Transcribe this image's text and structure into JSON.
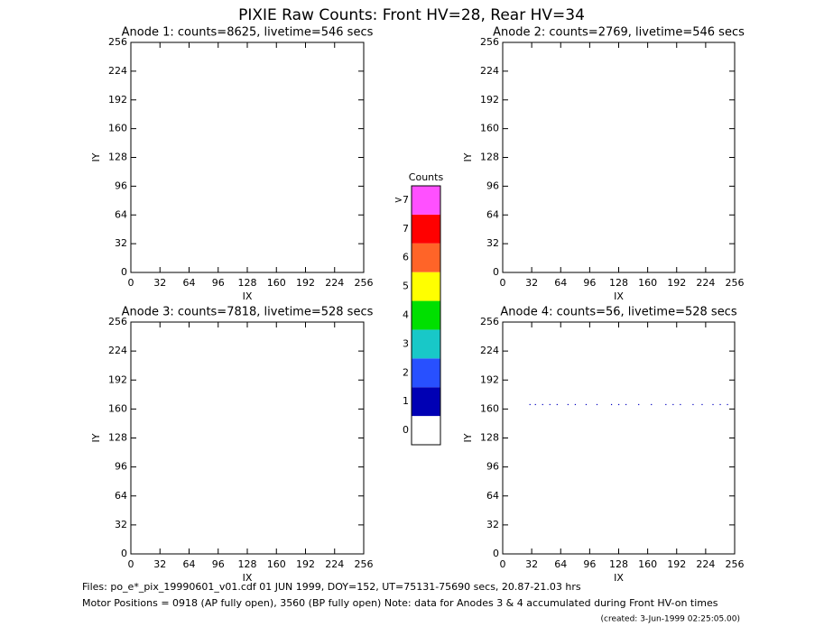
{
  "title": "PIXIE Raw Counts:  Front HV=28, Rear HV=34",
  "chart_data": [
    {
      "type": "scatter",
      "title": "Anode 1: counts=8625, livetime=546 secs",
      "xlabel": "IX",
      "ylabel": "IY",
      "xlim": [
        0,
        256
      ],
      "ylim": [
        0,
        256
      ],
      "xticks": [
        0,
        32,
        64,
        96,
        128,
        160,
        192,
        224,
        256
      ],
      "yticks": [
        0,
        32,
        64,
        96,
        128,
        160,
        192,
        224,
        256
      ],
      "color": "#0000c0"
    },
    {
      "type": "scatter",
      "title": "Anode 2: counts=2769, livetime=546 secs",
      "xlabel": "IX",
      "ylabel": "IY",
      "xlim": [
        0,
        256
      ],
      "ylim": [
        0,
        256
      ],
      "xticks": [
        0,
        32,
        64,
        96,
        128,
        160,
        192,
        224,
        256
      ],
      "yticks": [
        0,
        32,
        64,
        96,
        128,
        160,
        192,
        224,
        256
      ],
      "color": "#0000c0"
    },
    {
      "type": "scatter",
      "title": "Anode 3: counts=7818, livetime=528 secs",
      "xlabel": "IX",
      "ylabel": "IY",
      "xlim": [
        0,
        256
      ],
      "ylim": [
        0,
        256
      ],
      "xticks": [
        0,
        32,
        64,
        96,
        128,
        160,
        192,
        224,
        256
      ],
      "yticks": [
        0,
        32,
        64,
        96,
        128,
        160,
        192,
        224,
        256
      ],
      "color": "#ff50ff"
    },
    {
      "type": "scatter",
      "title": "Anode 4: counts=56, livetime=528 secs",
      "xlabel": "IX",
      "ylabel": "IY",
      "xlim": [
        0,
        256
      ],
      "ylim": [
        0,
        256
      ],
      "xticks": [
        0,
        32,
        64,
        96,
        128,
        160,
        192,
        224,
        256
      ],
      "yticks": [
        0,
        32,
        64,
        96,
        128,
        160,
        192,
        224,
        256
      ],
      "color": "#0000c0",
      "x": [
        30,
        36,
        44,
        52,
        60,
        72,
        80,
        92,
        104,
        120,
        128,
        136,
        150,
        164,
        180,
        188,
        196,
        210,
        220,
        232,
        240,
        248
      ],
      "y": [
        165,
        165,
        165,
        165,
        165,
        165,
        165,
        165,
        165,
        165,
        165,
        165,
        165,
        165,
        165,
        165,
        165,
        165,
        165,
        165,
        165,
        165
      ]
    },
    {
      "type": "colorbar",
      "title": "Counts",
      "categories": [
        "0",
        "1",
        "2",
        "3",
        "4",
        "5",
        "6",
        "7",
        ">7"
      ],
      "colors": [
        "#ffffff",
        "#0000b4",
        "#2850ff",
        "#18c8c8",
        "#00e000",
        "#ffff00",
        "#ff6428",
        "#ff0000",
        "#ff50ff"
      ]
    }
  ],
  "footer": [
    "Files: po_e*_pix_19990601_v01.cdf    01 JUN 1999, DOY=152, UT=75131-75690 secs, 20.87-21.03 hrs",
    "Motor Positions = 0918 (AP fully open), 3560 (BP fully open)    Note: data for Anodes 3 & 4 accumulated during Front HV-on times",
    "(created:  3-Jun-1999 02:25:05.00)"
  ]
}
